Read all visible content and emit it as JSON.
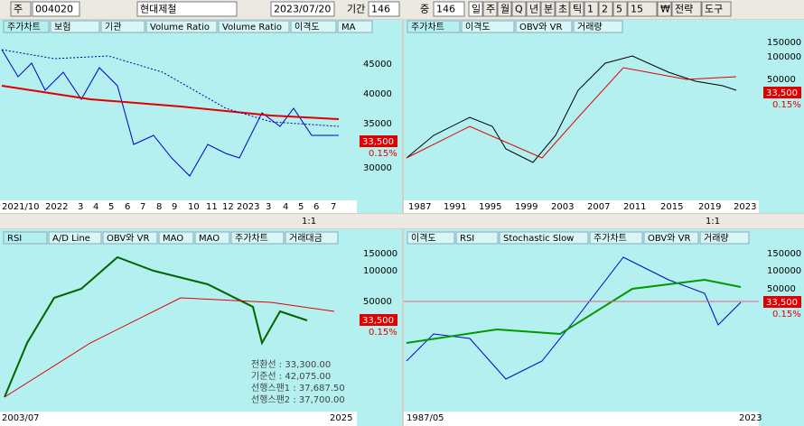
{
  "toolbar": {
    "market": "주",
    "code": "004020",
    "name": "현대제철",
    "date": "2023/07/20",
    "period_label": "기간",
    "period": "146",
    "count_label": "중",
    "count": "146",
    "buttons": [
      "일",
      "주",
      "월",
      "Q",
      "년",
      "분",
      "초",
      "틱",
      "1",
      "2",
      "5",
      "15",
      "₩",
      "전략",
      "도구"
    ]
  },
  "zoom": "1:1",
  "panels": [
    {
      "tabs": [
        "주가차트",
        "보험",
        "기관",
        "Volume Ratio",
        "Volume Ratio",
        "이격도",
        "MA"
      ],
      "y_labels": [
        "45000",
        "40000",
        "35000",
        "30000"
      ],
      "price": "33,500",
      "change": "0.15%",
      "x_labels": [
        "2021/10",
        "2022",
        "3",
        "4",
        "5",
        "6",
        "7",
        "8",
        "9",
        "10",
        "11",
        "12",
        "2023",
        "3",
        "4",
        "5",
        "6",
        "7"
      ]
    },
    {
      "tabs": [
        "주가차트",
        "이격도",
        "OBV와 VR",
        "거래량"
      ],
      "y_labels": [
        "150000",
        "100000",
        "50000"
      ],
      "price": "33,500",
      "change": "0.15%",
      "x_labels": [
        "1987",
        "1991",
        "1995",
        "1999",
        "2003",
        "2007",
        "2011",
        "2015",
        "2019",
        "2023"
      ]
    },
    {
      "tabs": [
        "RSI",
        "A/D Line",
        "OBV와 VR",
        "MAO",
        "MAO",
        "주가차트",
        "거래대금"
      ],
      "y_labels": [
        "150000",
        "100000",
        "50000"
      ],
      "price": "33,500",
      "change": "0.15%",
      "x_labels": [
        "2003/07",
        "2025"
      ],
      "info": [
        "전환선 : 33,300.00",
        "기준선 : 42,075.00",
        "선행스팬1 : 37,687.50",
        "선행스팬2 : 37,700.00"
      ]
    },
    {
      "tabs": [
        "이격도",
        "RSI",
        "Stochastic Slow",
        "주가차트",
        "OBV와 VR",
        "거래량"
      ],
      "y_labels": [
        "150000",
        "100000",
        "50000"
      ],
      "price": "33,500",
      "change": "0.15%",
      "x_labels": [
        "1987/05",
        "2023"
      ]
    }
  ]
}
